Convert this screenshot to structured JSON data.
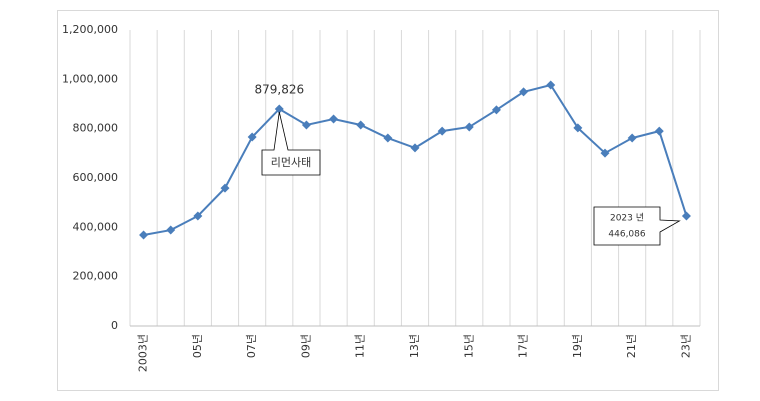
{
  "chart_data": {
    "type": "line",
    "categories": [
      "2003년",
      null,
      "05년",
      null,
      "07년",
      null,
      "09년",
      null,
      "11년",
      null,
      "13년",
      null,
      "15년",
      null,
      "17년",
      null,
      "19년",
      null,
      "21년",
      null,
      "23년"
    ],
    "series": [
      {
        "color": "#4a7ebb",
        "values": [
          369000,
          389000,
          446000,
          559000,
          766000,
          879826,
          815000,
          839000,
          815000,
          762000,
          722000,
          790000,
          807000,
          876000,
          949000,
          977000,
          803000,
          701000,
          762000,
          790000,
          446086
        ],
        "value_labels": [
          null,
          null,
          null,
          null,
          null,
          "879,826",
          null,
          null,
          null,
          null,
          null,
          null,
          null,
          null,
          null,
          null,
          null,
          null,
          null,
          null,
          "446,086"
        ]
      }
    ],
    "annotations": [
      "리먼사태",
      "2023 년"
    ],
    "ylim": [
      0,
      1200000
    ],
    "yticks": [
      0,
      {
        "value": 200000,
        "label": "200,000"
      },
      {
        "value": 400000,
        "label": "400,000"
      },
      {
        "value": 600000,
        "label": "600,000"
      },
      {
        "value": 800000,
        "label": "800,000"
      },
      {
        "value": 1000000,
        "label": "1,000,000"
      },
      {
        "value": 1200000,
        "label": "1,200,000"
      }
    ],
    "grid": true
  }
}
